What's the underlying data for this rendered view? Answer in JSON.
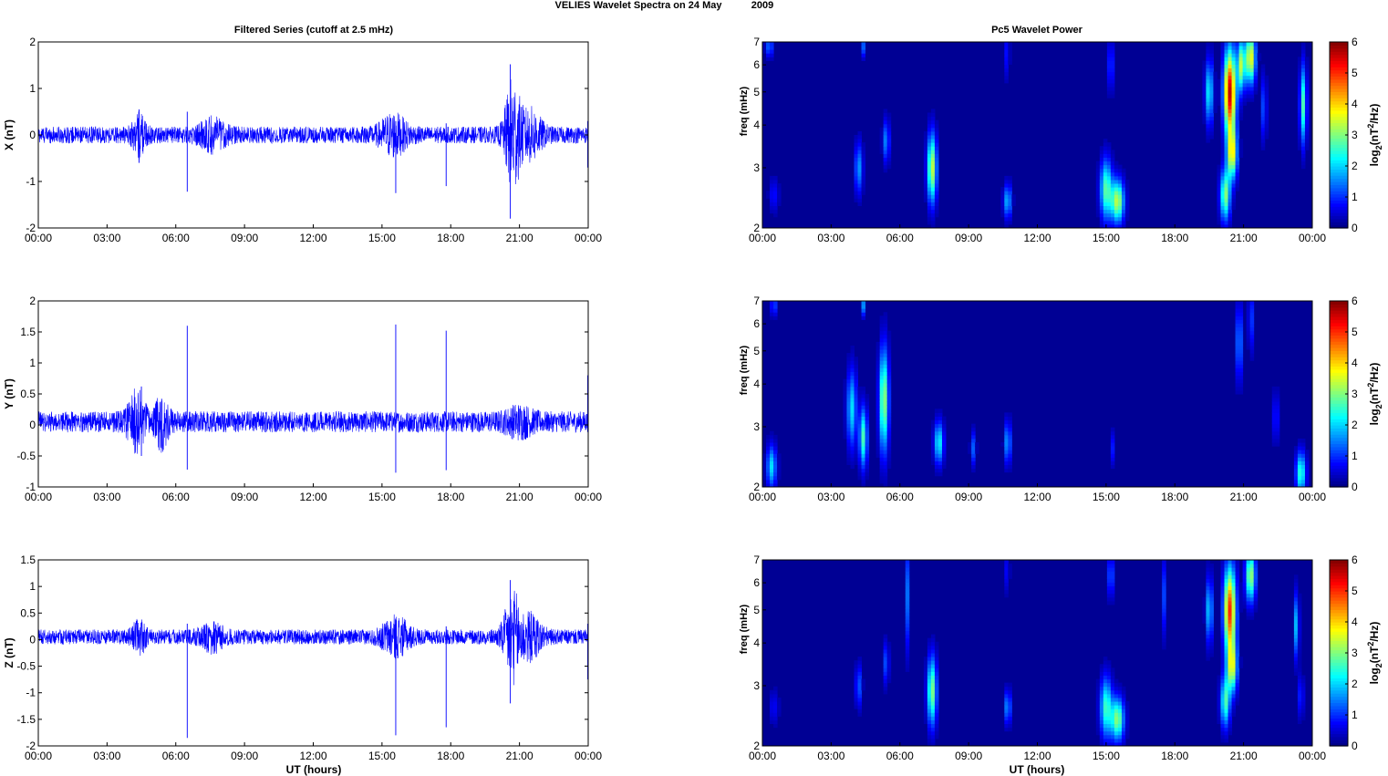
{
  "figure": {
    "suptitle_left": "VELIES Wavelet Spectra on 24 May",
    "suptitle_right": "2009",
    "left_title": "Filtered Series (cutoff at 2.5 mHz)",
    "right_title": "Pc5 Wavelet Power",
    "xlabel": "UT (hours)",
    "colors": {
      "trace": "#0000ff",
      "background": "#00008f",
      "axes": "#000000"
    }
  },
  "chart_data": [
    {
      "type": "line",
      "component": "X",
      "ylabel": "X (nT)",
      "ylim": [
        -2,
        2
      ],
      "yticks": [
        "-2",
        "-1",
        "0",
        "1",
        "2"
      ],
      "xlim_hours": [
        0,
        24
      ],
      "xticks": [
        "00:00",
        "03:00",
        "06:00",
        "09:00",
        "12:00",
        "15:00",
        "18:00",
        "21:00",
        "00:00"
      ],
      "baseline": 0.0,
      "noise_amplitude_nT": 0.18,
      "bursts": [
        {
          "time_h": 4.4,
          "amp_nT": 0.35,
          "width_h": 0.3
        },
        {
          "time_h": 7.6,
          "amp_nT": 0.25,
          "width_h": 0.6
        },
        {
          "time_h": 15.5,
          "amp_nT": 0.35,
          "width_h": 0.6
        },
        {
          "time_h": 20.7,
          "amp_nT": 1.1,
          "width_h": 0.35
        },
        {
          "time_h": 21.5,
          "amp_nT": 0.45,
          "width_h": 0.5
        }
      ],
      "spikes": [
        {
          "time_h": 4.4,
          "max_nT": 0.55,
          "min_nT": -0.6
        },
        {
          "time_h": 6.5,
          "max_nT": 0.5,
          "min_nT": -1.22
        },
        {
          "time_h": 15.6,
          "max_nT": 0.3,
          "min_nT": -1.25
        },
        {
          "time_h": 17.8,
          "max_nT": 0.25,
          "min_nT": -1.1
        },
        {
          "time_h": 20.6,
          "max_nT": 1.52,
          "min_nT": -1.8
        },
        {
          "time_h": 24.0,
          "max_nT": 0.3,
          "min_nT": -0.7
        }
      ]
    },
    {
      "type": "line",
      "component": "Y",
      "ylabel": "Y (nT)",
      "ylim": [
        -1,
        2
      ],
      "yticks": [
        "-1",
        "-0.5",
        "0",
        "0.5",
        "1",
        "1.5",
        "2"
      ],
      "xlim_hours": [
        0,
        24
      ],
      "xticks": [
        "00:00",
        "03:00",
        "06:00",
        "09:00",
        "12:00",
        "15:00",
        "18:00",
        "21:00",
        "00:00"
      ],
      "baseline": 0.05,
      "noise_amplitude_nT": 0.17,
      "bursts": [
        {
          "time_h": 4.3,
          "amp_nT": 0.4,
          "width_h": 0.4
        },
        {
          "time_h": 5.4,
          "amp_nT": 0.35,
          "width_h": 0.3
        },
        {
          "time_h": 21.0,
          "amp_nT": 0.15,
          "width_h": 0.6
        }
      ],
      "spikes": [
        {
          "time_h": 4.5,
          "max_nT": 0.62,
          "min_nT": -0.5
        },
        {
          "time_h": 6.5,
          "max_nT": 1.6,
          "min_nT": -0.72
        },
        {
          "time_h": 15.6,
          "max_nT": 1.62,
          "min_nT": -0.77
        },
        {
          "time_h": 17.8,
          "max_nT": 1.52,
          "min_nT": -0.73
        },
        {
          "time_h": 24.0,
          "max_nT": 0.8,
          "min_nT": -0.1
        }
      ]
    },
    {
      "type": "line",
      "component": "Z",
      "ylabel": "Z (nT)",
      "ylim": [
        -2,
        1.5
      ],
      "yticks": [
        "-2",
        "-1.5",
        "-1",
        "-0.5",
        "0",
        "0.5",
        "1",
        "1.5"
      ],
      "xlim_hours": [
        0,
        24
      ],
      "xticks": [
        "00:00",
        "03:00",
        "06:00",
        "09:00",
        "12:00",
        "15:00",
        "18:00",
        "21:00",
        "00:00"
      ],
      "baseline": 0.05,
      "noise_amplitude_nT": 0.14,
      "bursts": [
        {
          "time_h": 4.4,
          "amp_nT": 0.25,
          "width_h": 0.3
        },
        {
          "time_h": 7.6,
          "amp_nT": 0.2,
          "width_h": 0.5
        },
        {
          "time_h": 15.6,
          "amp_nT": 0.3,
          "width_h": 0.6
        },
        {
          "time_h": 20.7,
          "amp_nT": 0.75,
          "width_h": 0.4
        },
        {
          "time_h": 21.5,
          "amp_nT": 0.35,
          "width_h": 0.5
        }
      ],
      "spikes": [
        {
          "time_h": 6.5,
          "max_nT": 0.3,
          "min_nT": -1.85
        },
        {
          "time_h": 15.6,
          "max_nT": 0.3,
          "min_nT": -1.8
        },
        {
          "time_h": 17.8,
          "max_nT": 0.25,
          "min_nT": -1.65
        },
        {
          "time_h": 20.6,
          "max_nT": 1.12,
          "min_nT": -1.2
        },
        {
          "time_h": 24.0,
          "max_nT": 0.3,
          "min_nT": -0.75
        }
      ]
    },
    {
      "type": "heatmap",
      "component": "X",
      "ylabel": "freq (mHz)",
      "yscale": "log",
      "ylim_mHz": [
        2,
        7
      ],
      "yticks": [
        "2",
        "3",
        "4",
        "5",
        "6",
        "7"
      ],
      "xlim_hours": [
        0,
        24
      ],
      "xticks": [
        "00:00",
        "03:00",
        "06:00",
        "09:00",
        "12:00",
        "15:00",
        "18:00",
        "21:00",
        "00:00"
      ],
      "colorbar_label": "log2(nT2/Hz)",
      "colorbar_ticks": [
        "0",
        "1",
        "2",
        "3",
        "4",
        "5",
        "6"
      ],
      "clim": [
        0,
        6
      ],
      "blobs": [
        {
          "time_h": 0.3,
          "freq_mHz": 6.8,
          "power": 1.3,
          "dt_h": 0.12,
          "dlogf": 0.05
        },
        {
          "time_h": 0.5,
          "freq_mHz": 2.5,
          "power": 0.7,
          "dt_h": 0.15,
          "dlogf": 0.08
        },
        {
          "time_h": 4.2,
          "freq_mHz": 3.0,
          "power": 1.6,
          "dt_h": 0.12,
          "dlogf": 0.12
        },
        {
          "time_h": 4.4,
          "freq_mHz": 6.8,
          "power": 1.2,
          "dt_h": 0.06,
          "dlogf": 0.05
        },
        {
          "time_h": 5.4,
          "freq_mHz": 3.6,
          "power": 1.5,
          "dt_h": 0.1,
          "dlogf": 0.1
        },
        {
          "time_h": 7.4,
          "freq_mHz": 3.0,
          "power": 3.4,
          "dt_h": 0.14,
          "dlogf": 0.16
        },
        {
          "time_h": 10.7,
          "freq_mHz": 2.4,
          "power": 1.8,
          "dt_h": 0.12,
          "dlogf": 0.08
        },
        {
          "time_h": 10.7,
          "freq_mHz": 6.5,
          "power": 1.4,
          "dt_h": 0.05,
          "dlogf": 0.12
        },
        {
          "time_h": 15.0,
          "freq_mHz": 2.6,
          "power": 2.7,
          "dt_h": 0.18,
          "dlogf": 0.14
        },
        {
          "time_h": 15.5,
          "freq_mHz": 2.4,
          "power": 3.3,
          "dt_h": 0.2,
          "dlogf": 0.1
        },
        {
          "time_h": 15.2,
          "freq_mHz": 6.0,
          "power": 1.8,
          "dt_h": 0.06,
          "dlogf": 0.12
        },
        {
          "time_h": 19.5,
          "freq_mHz": 5.0,
          "power": 2.2,
          "dt_h": 0.12,
          "dlogf": 0.15
        },
        {
          "time_h": 20.2,
          "freq_mHz": 2.5,
          "power": 3.0,
          "dt_h": 0.15,
          "dlogf": 0.12
        },
        {
          "time_h": 20.4,
          "freq_mHz": 5.0,
          "power": 5.6,
          "dt_h": 0.18,
          "dlogf": 0.2
        },
        {
          "time_h": 20.5,
          "freq_mHz": 3.3,
          "power": 3.5,
          "dt_h": 0.15,
          "dlogf": 0.12
        },
        {
          "time_h": 20.9,
          "freq_mHz": 6.0,
          "power": 3.2,
          "dt_h": 0.12,
          "dlogf": 0.12
        },
        {
          "time_h": 21.3,
          "freq_mHz": 6.3,
          "power": 3.8,
          "dt_h": 0.15,
          "dlogf": 0.12
        },
        {
          "time_h": 21.9,
          "freq_mHz": 4.5,
          "power": 1.7,
          "dt_h": 0.06,
          "dlogf": 0.15
        },
        {
          "time_h": 23.6,
          "freq_mHz": 4.6,
          "power": 2.6,
          "dt_h": 0.1,
          "dlogf": 0.18
        }
      ]
    },
    {
      "type": "heatmap",
      "component": "Y",
      "ylabel": "freq (mHz)",
      "yscale": "log",
      "ylim_mHz": [
        2,
        7
      ],
      "yticks": [
        "2",
        "3",
        "4",
        "5",
        "6",
        "7"
      ],
      "xlim_hours": [
        0,
        24
      ],
      "xticks": [
        "00:00",
        "03:00",
        "06:00",
        "09:00",
        "12:00",
        "15:00",
        "18:00",
        "21:00",
        "00:00"
      ],
      "colorbar_label": "log2(nT2/Hz)",
      "colorbar_ticks": [
        "0",
        "1",
        "2",
        "3",
        "4",
        "5",
        "6"
      ],
      "clim": [
        0,
        6
      ],
      "blobs": [
        {
          "time_h": 0.4,
          "freq_mHz": 2.3,
          "power": 2.0,
          "dt_h": 0.15,
          "dlogf": 0.1
        },
        {
          "time_h": 0.5,
          "freq_mHz": 6.8,
          "power": 1.1,
          "dt_h": 0.1,
          "dlogf": 0.05
        },
        {
          "time_h": 3.9,
          "freq_mHz": 3.4,
          "power": 2.0,
          "dt_h": 0.15,
          "dlogf": 0.18
        },
        {
          "time_h": 4.4,
          "freq_mHz": 2.8,
          "power": 2.6,
          "dt_h": 0.12,
          "dlogf": 0.14
        },
        {
          "time_h": 4.4,
          "freq_mHz": 6.8,
          "power": 1.5,
          "dt_h": 0.06,
          "dlogf": 0.05
        },
        {
          "time_h": 5.3,
          "freq_mHz": 3.6,
          "power": 3.2,
          "dt_h": 0.14,
          "dlogf": 0.24
        },
        {
          "time_h": 7.7,
          "freq_mHz": 2.7,
          "power": 2.2,
          "dt_h": 0.14,
          "dlogf": 0.1
        },
        {
          "time_h": 9.2,
          "freq_mHz": 2.6,
          "power": 1.2,
          "dt_h": 0.08,
          "dlogf": 0.08
        },
        {
          "time_h": 10.7,
          "freq_mHz": 2.7,
          "power": 1.7,
          "dt_h": 0.1,
          "dlogf": 0.1
        },
        {
          "time_h": 15.3,
          "freq_mHz": 2.6,
          "power": 0.8,
          "dt_h": 0.06,
          "dlogf": 0.08
        },
        {
          "time_h": 20.8,
          "freq_mHz": 5.3,
          "power": 1.8,
          "dt_h": 0.08,
          "dlogf": 0.18
        },
        {
          "time_h": 21.3,
          "freq_mHz": 6.2,
          "power": 1.5,
          "dt_h": 0.06,
          "dlogf": 0.15
        },
        {
          "time_h": 22.4,
          "freq_mHz": 3.2,
          "power": 1.0,
          "dt_h": 0.08,
          "dlogf": 0.12
        },
        {
          "time_h": 23.5,
          "freq_mHz": 2.2,
          "power": 2.5,
          "dt_h": 0.15,
          "dlogf": 0.1
        }
      ]
    },
    {
      "type": "heatmap",
      "component": "Z",
      "ylabel": "freq (mHz)",
      "yscale": "log",
      "ylim_mHz": [
        2,
        7
      ],
      "yticks": [
        "2",
        "3",
        "4",
        "5",
        "6",
        "7"
      ],
      "xlim_hours": [
        0,
        24
      ],
      "xticks": [
        "00:00",
        "03:00",
        "06:00",
        "09:00",
        "12:00",
        "15:00",
        "18:00",
        "21:00",
        "00:00"
      ],
      "colorbar_label": "log2(nT2/Hz)",
      "colorbar_ticks": [
        "0",
        "1",
        "2",
        "3",
        "4",
        "5",
        "6"
      ],
      "clim": [
        0,
        6
      ],
      "blobs": [
        {
          "time_h": 0.5,
          "freq_mHz": 2.6,
          "power": 0.6,
          "dt_h": 0.15,
          "dlogf": 0.08
        },
        {
          "time_h": 4.2,
          "freq_mHz": 3.0,
          "power": 1.2,
          "dt_h": 0.1,
          "dlogf": 0.1
        },
        {
          "time_h": 5.4,
          "freq_mHz": 3.5,
          "power": 1.2,
          "dt_h": 0.08,
          "dlogf": 0.1
        },
        {
          "time_h": 6.3,
          "freq_mHz": 5.5,
          "power": 1.4,
          "dt_h": 0.05,
          "dlogf": 0.25
        },
        {
          "time_h": 7.4,
          "freq_mHz": 2.9,
          "power": 3.0,
          "dt_h": 0.14,
          "dlogf": 0.16
        },
        {
          "time_h": 10.7,
          "freq_mHz": 2.6,
          "power": 1.6,
          "dt_h": 0.1,
          "dlogf": 0.08
        },
        {
          "time_h": 10.7,
          "freq_mHz": 6.5,
          "power": 1.2,
          "dt_h": 0.05,
          "dlogf": 0.1
        },
        {
          "time_h": 15.0,
          "freq_mHz": 2.6,
          "power": 2.5,
          "dt_h": 0.18,
          "dlogf": 0.14
        },
        {
          "time_h": 15.5,
          "freq_mHz": 2.4,
          "power": 3.0,
          "dt_h": 0.2,
          "dlogf": 0.1
        },
        {
          "time_h": 15.2,
          "freq_mHz": 6.3,
          "power": 2.2,
          "dt_h": 0.06,
          "dlogf": 0.1
        },
        {
          "time_h": 17.5,
          "freq_mHz": 5.5,
          "power": 1.1,
          "dt_h": 0.05,
          "dlogf": 0.18
        },
        {
          "time_h": 19.5,
          "freq_mHz": 5.0,
          "power": 2.0,
          "dt_h": 0.1,
          "dlogf": 0.15
        },
        {
          "time_h": 20.2,
          "freq_mHz": 2.7,
          "power": 2.6,
          "dt_h": 0.14,
          "dlogf": 0.12
        },
        {
          "time_h": 20.4,
          "freq_mHz": 5.0,
          "power": 5.0,
          "dt_h": 0.18,
          "dlogf": 0.2
        },
        {
          "time_h": 20.5,
          "freq_mHz": 3.4,
          "power": 3.2,
          "dt_h": 0.15,
          "dlogf": 0.12
        },
        {
          "time_h": 21.3,
          "freq_mHz": 6.3,
          "power": 3.2,
          "dt_h": 0.15,
          "dlogf": 0.12
        },
        {
          "time_h": 23.3,
          "freq_mHz": 4.5,
          "power": 1.8,
          "dt_h": 0.08,
          "dlogf": 0.15
        },
        {
          "time_h": 23.5,
          "freq_mHz": 2.8,
          "power": 1.0,
          "dt_h": 0.08,
          "dlogf": 0.1
        }
      ]
    }
  ]
}
